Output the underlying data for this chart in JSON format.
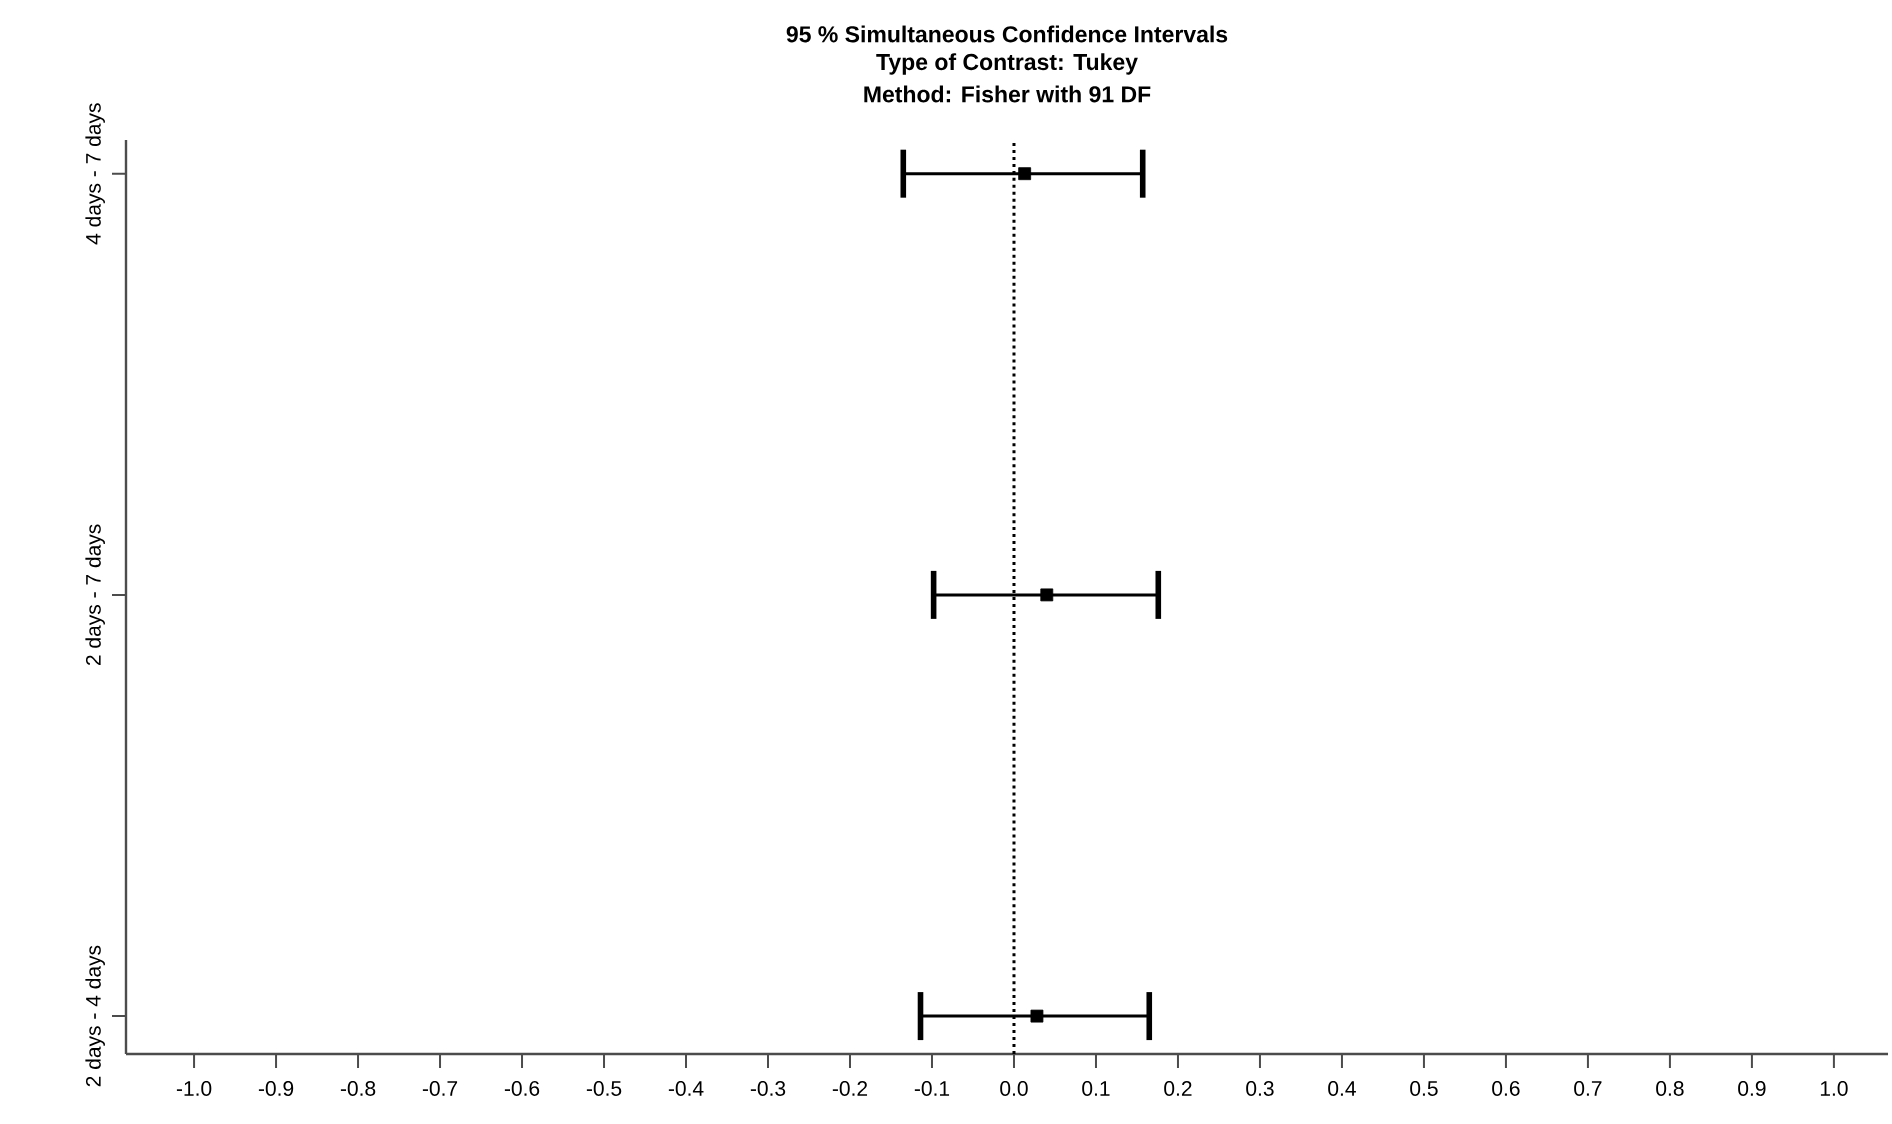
{
  "chart_data": {
    "type": "scatter",
    "orientation": "horizontal",
    "title": "95 % Simultaneous Confidence Intervals",
    "subtitle": "Type of Contrast: Tukey",
    "annotations": [
      "Method: Fisher with 91 DF"
    ],
    "categories": [
      "4 days - 7 days",
      "2 days - 7 days",
      "2 days - 4 days"
    ],
    "values": [
      0.013,
      0.04,
      0.028
    ],
    "errors": [
      [
        -0.135,
        0.157
      ],
      [
        -0.098,
        0.176
      ],
      [
        -0.114,
        0.165
      ]
    ],
    "color": "#000000",
    "marker": "square",
    "xlim": [
      -1.083,
      1.066
    ],
    "xticks": [
      {
        "value": -1.0,
        "label": "-1.0"
      },
      {
        "value": -0.9,
        "label": "-0.9"
      },
      {
        "value": -0.8,
        "label": "-0.8"
      },
      {
        "value": -0.7,
        "label": "-0.7"
      },
      {
        "value": -0.6,
        "label": "-0.6"
      },
      {
        "value": -0.5,
        "label": "-0.5"
      },
      {
        "value": -0.4,
        "label": "-0.4"
      },
      {
        "value": -0.3,
        "label": "-0.3"
      },
      {
        "value": -0.2,
        "label": "-0.2"
      },
      {
        "value": -0.1,
        "label": "-0.1"
      },
      {
        "value": 0.0,
        "label": "0.0"
      },
      {
        "value": 0.1,
        "label": "0.1"
      },
      {
        "value": 0.2,
        "label": "0.2"
      },
      {
        "value": 0.3,
        "label": "0.3"
      },
      {
        "value": 0.4,
        "label": "0.4"
      },
      {
        "value": 0.5,
        "label": "0.5"
      },
      {
        "value": 0.6,
        "label": "0.6"
      },
      {
        "value": 0.7,
        "label": "0.7"
      },
      {
        "value": 0.8,
        "label": "0.8"
      },
      {
        "value": 0.9,
        "label": "0.9"
      },
      {
        "value": 1.0,
        "label": "1.0"
      }
    ],
    "ref_lines": [
      {
        "axis": "x",
        "value": 0,
        "line_style": "dotted",
        "color": "#000000"
      }
    ],
    "grid": false
  }
}
